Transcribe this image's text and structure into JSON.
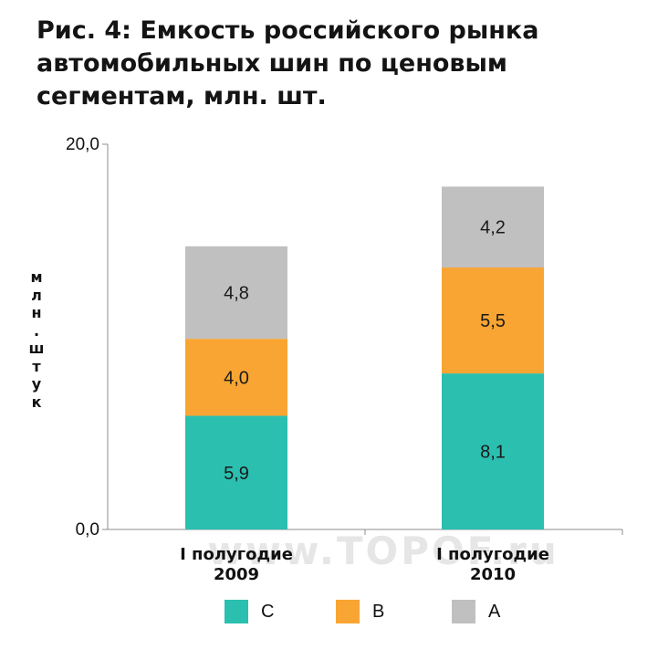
{
  "title_lines": [
    "Рис. 4: Емкость российского рынка",
    "автомобильных шин по ценовым",
    "сегментам, млн. шт."
  ],
  "watermark": "www.TOPOF.ru",
  "chart_data": {
    "type": "bar",
    "stacked": true,
    "title": "Рис. 4: Емкость российского рынка автомобильных шин по ценовым сегментам, млн. шт.",
    "ylabel": "млн. штук",
    "xlabel": "",
    "ylim": [
      0,
      20
    ],
    "y_ticks": [
      "0,0",
      "20,0"
    ],
    "categories": [
      [
        "I полугодие",
        "2009"
      ],
      [
        "I полугодие",
        "2010"
      ]
    ],
    "series": [
      {
        "name": "C",
        "color": "#2bbfb0",
        "values": [
          5.9,
          8.1
        ],
        "labels": [
          "5,9",
          "8,1"
        ]
      },
      {
        "name": "B",
        "color": "#f9a533",
        "values": [
          4.0,
          5.5
        ],
        "labels": [
          "4,0",
          "5,5"
        ]
      },
      {
        "name": "A",
        "color": "#c0c0c0",
        "values": [
          4.8,
          4.2
        ],
        "labels": [
          "4,8",
          "4,2"
        ]
      }
    ],
    "grid": false,
    "legend": "bottom"
  }
}
